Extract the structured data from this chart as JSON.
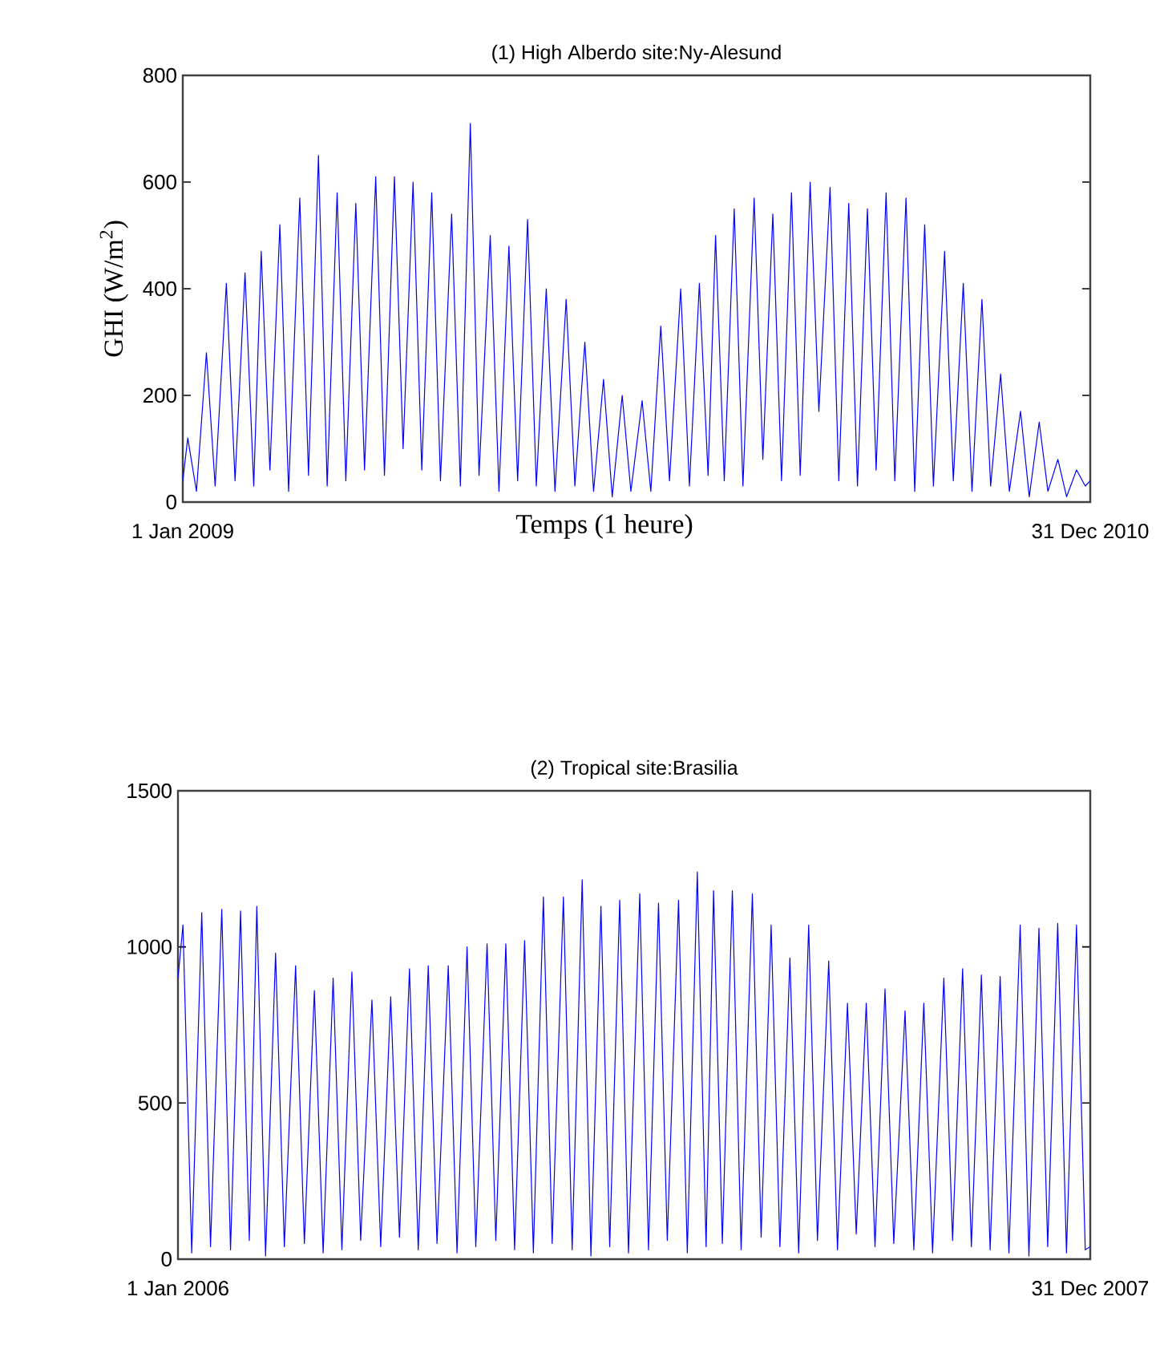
{
  "chart_data": [
    {
      "type": "line",
      "title": "(1) High Alberdo site:Ny-Alesund",
      "xlabel": "Temps (1 heure)",
      "ylabel": "GHI (W/m$^{2}$)",
      "x": [
        "2009-01-01",
        "2009-01-05",
        "2009-01-12",
        "2009-01-20",
        "2009-01-27",
        "2009-02-05",
        "2009-02-12",
        "2009-02-20",
        "2009-02-27",
        "2009-03-05",
        "2009-03-12",
        "2009-03-20",
        "2009-03-27",
        "2009-04-05",
        "2009-04-12",
        "2009-04-20",
        "2009-04-27",
        "2009-05-05",
        "2009-05-12",
        "2009-05-20",
        "2009-05-27",
        "2009-06-05",
        "2009-06-12",
        "2009-06-20",
        "2009-06-27",
        "2009-07-05",
        "2009-07-12",
        "2009-07-20",
        "2009-07-27",
        "2009-08-05",
        "2009-08-12",
        "2009-08-20",
        "2009-08-27",
        "2009-09-05",
        "2009-09-12",
        "2009-09-20",
        "2009-09-27",
        "2009-10-05",
        "2009-10-12",
        "2009-10-20",
        "2009-10-27",
        "2009-11-05",
        "2009-11-12",
        "2009-11-20",
        "2009-11-27",
        "2009-12-05",
        "2009-12-12",
        "2009-12-20",
        "2009-12-27",
        "2010-01-05",
        "2010-01-12",
        "2010-01-20",
        "2010-01-27",
        "2010-02-05",
        "2010-02-12",
        "2010-02-20",
        "2010-02-27",
        "2010-03-05",
        "2010-03-12",
        "2010-03-20",
        "2010-03-27",
        "2010-04-05",
        "2010-04-12",
        "2010-04-20",
        "2010-04-27",
        "2010-05-05",
        "2010-05-12",
        "2010-05-20",
        "2010-05-27",
        "2010-06-05",
        "2010-06-12",
        "2010-06-20",
        "2010-06-27",
        "2010-07-05",
        "2010-07-12",
        "2010-07-20",
        "2010-07-27",
        "2010-08-05",
        "2010-08-12",
        "2010-08-20",
        "2010-08-27",
        "2010-09-05",
        "2010-09-12",
        "2010-09-20",
        "2010-09-27",
        "2010-10-05",
        "2010-10-12",
        "2010-10-20",
        "2010-10-27",
        "2010-11-05",
        "2010-11-12",
        "2010-11-20",
        "2010-11-27",
        "2010-12-05",
        "2010-12-12",
        "2010-12-20",
        "2010-12-27",
        "2010-12-31"
      ],
      "series": [
        {
          "color": "#0000ff",
          "values": [
            40,
            120,
            20,
            280,
            30,
            410,
            40,
            430,
            30,
            470,
            60,
            520,
            20,
            570,
            50,
            650,
            30,
            580,
            40,
            560,
            60,
            610,
            50,
            610,
            100,
            600,
            60,
            580,
            40,
            540,
            30,
            710,
            50,
            500,
            20,
            480,
            40,
            530,
            30,
            400,
            20,
            380,
            30,
            300,
            20,
            230,
            10,
            200,
            20,
            190,
            20,
            330,
            40,
            400,
            30,
            410,
            50,
            500,
            40,
            550,
            30,
            570,
            80,
            540,
            40,
            580,
            50,
            600,
            170,
            590,
            40,
            560,
            30,
            550,
            60,
            580,
            40,
            570,
            20,
            520,
            30,
            470,
            40,
            410,
            20,
            380,
            30,
            240,
            20,
            170,
            10,
            150,
            20,
            80,
            10,
            60,
            30,
            40
          ]
        }
      ],
      "xlim": [
        "2009-01-01",
        "2010-12-31"
      ],
      "ylim": [
        0,
        800
      ],
      "xticks": [
        {
          "value": "2009-01-01",
          "label": "1 Jan 2009"
        },
        {
          "value": "2010-12-31",
          "label": "31 Dec 2010"
        }
      ],
      "yticks": [
        0,
        200,
        400,
        600,
        800
      ]
    },
    {
      "type": "line",
      "title": "(2) Tropical site:Brasilia",
      "x": [
        "2006-01-01",
        "2006-01-05",
        "2006-01-12",
        "2006-01-20",
        "2006-01-27",
        "2006-02-05",
        "2006-02-12",
        "2006-02-20",
        "2006-02-27",
        "2006-03-05",
        "2006-03-12",
        "2006-03-20",
        "2006-03-27",
        "2006-04-05",
        "2006-04-12",
        "2006-04-20",
        "2006-04-27",
        "2006-05-05",
        "2006-05-12",
        "2006-05-20",
        "2006-05-27",
        "2006-06-05",
        "2006-06-12",
        "2006-06-20",
        "2006-06-27",
        "2006-07-05",
        "2006-07-12",
        "2006-07-20",
        "2006-07-27",
        "2006-08-05",
        "2006-08-12",
        "2006-08-20",
        "2006-08-27",
        "2006-09-05",
        "2006-09-12",
        "2006-09-20",
        "2006-09-27",
        "2006-10-05",
        "2006-10-12",
        "2006-10-20",
        "2006-10-27",
        "2006-11-05",
        "2006-11-12",
        "2006-11-20",
        "2006-11-27",
        "2006-12-05",
        "2006-12-12",
        "2006-12-20",
        "2006-12-27",
        "2007-01-05",
        "2007-01-12",
        "2007-01-20",
        "2007-01-27",
        "2007-02-05",
        "2007-02-12",
        "2007-02-20",
        "2007-02-27",
        "2007-03-05",
        "2007-03-12",
        "2007-03-20",
        "2007-03-27",
        "2007-04-05",
        "2007-04-12",
        "2007-04-20",
        "2007-04-27",
        "2007-05-05",
        "2007-05-12",
        "2007-05-20",
        "2007-05-27",
        "2007-06-05",
        "2007-06-12",
        "2007-06-20",
        "2007-06-27",
        "2007-07-05",
        "2007-07-12",
        "2007-07-20",
        "2007-07-27",
        "2007-08-05",
        "2007-08-12",
        "2007-08-20",
        "2007-08-27",
        "2007-09-05",
        "2007-09-12",
        "2007-09-20",
        "2007-09-27",
        "2007-10-05",
        "2007-10-12",
        "2007-10-20",
        "2007-10-27",
        "2007-11-05",
        "2007-11-12",
        "2007-11-20",
        "2007-11-27",
        "2007-12-05",
        "2007-12-12",
        "2007-12-20",
        "2007-12-27",
        "2007-12-31"
      ],
      "series": [
        {
          "color": "#0000ff",
          "values": [
            900,
            1070,
            20,
            1110,
            40,
            1120,
            30,
            1115,
            60,
            1130,
            10,
            980,
            40,
            940,
            50,
            860,
            20,
            900,
            30,
            920,
            60,
            830,
            40,
            840,
            70,
            930,
            30,
            940,
            50,
            940,
            20,
            1000,
            40,
            1010,
            60,
            1010,
            30,
            1020,
            20,
            1160,
            50,
            1160,
            30,
            1215,
            10,
            1130,
            40,
            1150,
            20,
            1170,
            30,
            1140,
            60,
            1150,
            20,
            1240,
            40,
            1180,
            50,
            1180,
            30,
            1170,
            70,
            1070,
            40,
            965,
            20,
            1070,
            60,
            955,
            30,
            820,
            80,
            820,
            40,
            865,
            50,
            795,
            30,
            820,
            20,
            900,
            60,
            930,
            40,
            910,
            30,
            905,
            20,
            1070,
            10,
            1060,
            40,
            1075,
            20,
            1070,
            30,
            40
          ]
        }
      ],
      "xlim": [
        "2006-01-01",
        "2007-12-31"
      ],
      "ylim": [
        0,
        1500
      ],
      "xticks": [
        {
          "value": "2006-01-01",
          "label": "1 Jan 2006"
        },
        {
          "value": "2007-12-31",
          "label": "31 Dec 2007"
        }
      ],
      "yticks": [
        0,
        500,
        1000,
        1500
      ]
    }
  ]
}
